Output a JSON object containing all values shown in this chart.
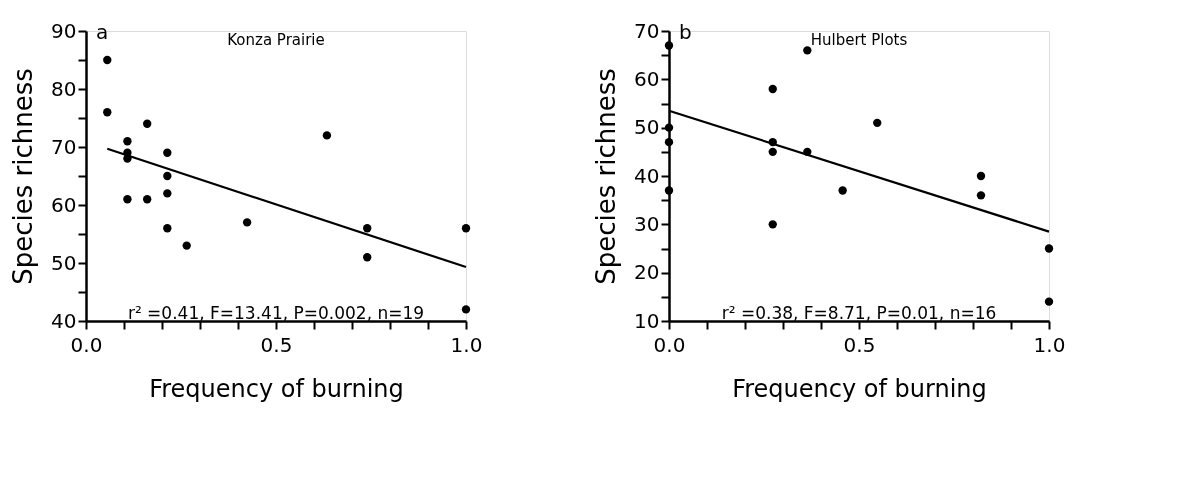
{
  "chart_data": [
    {
      "type": "scatter",
      "title": "Konza Prairie",
      "xlabel": "Frequency of burning",
      "ylabel": "Species richness",
      "annotations": [
        "a",
        "r² =0.41, F=13.41, P=0.002, n=19"
      ],
      "xlim": [
        0,
        1
      ],
      "xticks": [
        {
          "value": 0,
          "label": "0.0"
        },
        {
          "value": 0.1,
          "label": null
        },
        {
          "value": 0.2,
          "label": null
        },
        {
          "value": 0.3,
          "label": null
        },
        {
          "value": 0.4,
          "label": null
        },
        0.5,
        {
          "value": 0.6,
          "label": null
        },
        {
          "value": 0.7,
          "label": null
        },
        {
          "value": 0.8,
          "label": null
        },
        {
          "value": 0.9,
          "label": null
        },
        {
          "value": 1,
          "label": "1.0"
        }
      ],
      "ylim": [
        40,
        90
      ],
      "yticks": [
        40,
        {
          "value": 45,
          "label": null
        },
        50,
        {
          "value": 55,
          "label": null
        },
        60,
        {
          "value": 65,
          "label": null
        },
        70,
        {
          "value": 75,
          "label": null
        },
        80,
        {
          "value": 85,
          "label": null
        },
        90
      ],
      "grid": false,
      "marker": "circle",
      "series": [
        {
          "color": "#000000",
          "x": [
            0.056,
            0.056,
            0.109,
            0.109,
            0.109,
            0.109,
            0.161,
            0.161,
            0.214,
            0.214,
            0.214,
            0.214,
            0.265,
            0.424,
            0.634,
            0.74,
            0.74,
            1.0,
            1.0
          ],
          "values": [
            85,
            76,
            71,
            69,
            68,
            61,
            74,
            61,
            69,
            65,
            62,
            56,
            53,
            57,
            72,
            56,
            51,
            56,
            42
          ]
        },
        {
          "type": "line",
          "color": "#000000",
          "line_style": "solid",
          "marker": "none",
          "x": [
            0.056,
            1.0
          ],
          "values": [
            69.7,
            49.3
          ]
        }
      ]
    },
    {
      "type": "scatter",
      "title": "Hulbert Plots",
      "xlabel": "Frequency of burning",
      "ylabel": "Species richness",
      "annotations": [
        "b",
        "r² =0.38, F=8.71, P=0.01, n=16"
      ],
      "xlim": [
        0,
        1
      ],
      "xticks": [
        {
          "value": 0,
          "label": "0.0"
        },
        {
          "value": 0.1,
          "label": null
        },
        {
          "value": 0.2,
          "label": null
        },
        {
          "value": 0.3,
          "label": null
        },
        {
          "value": 0.4,
          "label": null
        },
        0.5,
        {
          "value": 0.6,
          "label": null
        },
        {
          "value": 0.7,
          "label": null
        },
        {
          "value": 0.8,
          "label": null
        },
        {
          "value": 0.9,
          "label": null
        },
        {
          "value": 1,
          "label": "1.0"
        }
      ],
      "ylim": [
        10,
        70
      ],
      "yticks": [
        10,
        {
          "value": 15,
          "label": null
        },
        20,
        {
          "value": 25,
          "label": null
        },
        30,
        {
          "value": 35,
          "label": null
        },
        40,
        {
          "value": 45,
          "label": null
        },
        50,
        {
          "value": 55,
          "label": null
        },
        60,
        {
          "value": 65,
          "label": null
        },
        70
      ],
      "grid": false,
      "marker": "circle",
      "series": [
        {
          "color": "#000000",
          "x": [
            0.0,
            0.0,
            0.0,
            0.0,
            0.273,
            0.273,
            0.273,
            0.273,
            0.364,
            0.364,
            0.457,
            0.548,
            0.821,
            0.821,
            1.0,
            1.0
          ],
          "values": [
            67,
            50,
            47,
            37,
            58,
            47,
            45,
            30,
            66,
            45,
            37,
            51,
            40,
            36,
            25,
            14
          ]
        },
        {
          "type": "line",
          "color": "#000000",
          "line_style": "solid",
          "marker": "none",
          "x": [
            0.0,
            1.0
          ],
          "values": [
            53.5,
            28.5
          ]
        }
      ]
    }
  ]
}
